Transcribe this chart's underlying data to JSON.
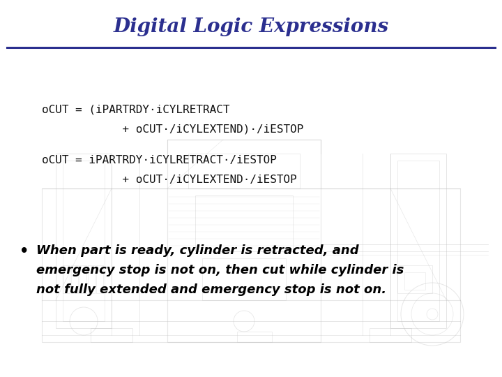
{
  "title": "Digital Logic Expressions",
  "title_color": "#2B2F8F",
  "title_fontsize": 20,
  "bg_color": "#FFFFFF",
  "line_color": "#2B2F8F",
  "eq1_line1": "oCUT = (iPARTRDY·iCYLRETRACT",
  "eq1_line2": "            + oCUT·/iCYLEXTEND)·/iESTOP",
  "eq2_line1": "oCUT = iPARTRDY·iCYLRETRACT·/iESTOP",
  "eq2_line2": "            + oCUT·/iCYLEXTEND·/iESTOP",
  "eq_fontsize": 11.5,
  "eq_color": "#111111",
  "bullet_text_line1": "When part is ready, cylinder is retracted, and",
  "bullet_text_line2": "emergency stop is not on, then cut while cylinder is",
  "bullet_text_line3": "not fully extended and emergency stop is not on.",
  "bullet_fontsize": 13,
  "bullet_color": "#000000",
  "machinery_color": "#BBBBBB",
  "machinery_alpha": 0.35
}
